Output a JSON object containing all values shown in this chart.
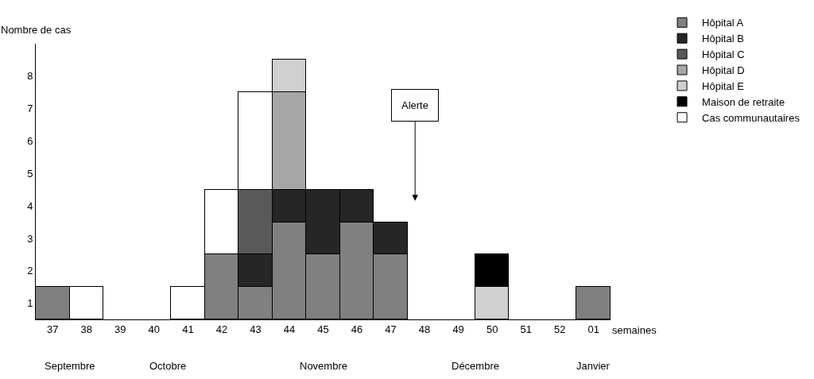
{
  "chart_data": {
    "type": "bar",
    "stacked": true,
    "xlabel": "semaines",
    "ylabel": "Nombre de cas",
    "categories": [
      "37",
      "38",
      "39",
      "40",
      "41",
      "42",
      "43",
      "44",
      "45",
      "46",
      "47",
      "48",
      "49",
      "50",
      "51",
      "52",
      "01"
    ],
    "series": [
      {
        "name": "Hôpital A",
        "color": "#808080",
        "values": [
          1,
          null,
          null,
          null,
          null,
          2,
          1,
          3,
          2,
          3,
          2,
          null,
          null,
          null,
          null,
          null,
          1
        ]
      },
      {
        "name": "Hôpital B",
        "color": "#262626",
        "values": [
          null,
          null,
          null,
          null,
          null,
          null,
          1,
          1,
          2,
          1,
          1,
          null,
          null,
          null,
          null,
          null,
          null
        ]
      },
      {
        "name": "Hôpital C",
        "color": "#595959",
        "values": [
          null,
          null,
          null,
          null,
          null,
          null,
          2,
          null,
          null,
          null,
          null,
          null,
          null,
          null,
          null,
          null,
          null
        ]
      },
      {
        "name": "Hôpital D",
        "color": "#a6a6a6",
        "values": [
          null,
          null,
          null,
          null,
          null,
          null,
          null,
          3,
          null,
          null,
          null,
          null,
          null,
          null,
          null,
          null,
          null
        ]
      },
      {
        "name": "Hôpital E",
        "color": "#d0d0d0",
        "values": [
          null,
          null,
          null,
          null,
          null,
          null,
          null,
          1,
          null,
          null,
          null,
          null,
          null,
          1,
          null,
          null,
          null
        ]
      },
      {
        "name": "Maison de retraite",
        "color": "#000000",
        "values": [
          null,
          null,
          null,
          null,
          null,
          null,
          null,
          null,
          null,
          null,
          null,
          null,
          null,
          1,
          null,
          null,
          null
        ]
      },
      {
        "name": "Cas communautaires",
        "color": "#ffffff",
        "values": [
          null,
          1,
          null,
          null,
          1,
          2,
          3,
          null,
          null,
          null,
          null,
          null,
          null,
          null,
          null,
          null,
          null
        ]
      }
    ],
    "ylim": [
      0,
      8.5
    ],
    "yticks": [
      {
        "value": 0.5,
        "label": "1"
      },
      {
        "value": 1.5,
        "label": "2"
      },
      {
        "value": 2.5,
        "label": "3"
      },
      {
        "value": 3.5,
        "label": "4"
      },
      {
        "value": 4.5,
        "label": "5"
      },
      {
        "value": 5.5,
        "label": "6"
      },
      {
        "value": 6.5,
        "label": "7"
      },
      {
        "value": 7.5,
        "label": "8"
      }
    ],
    "annotations": [
      "Alerte",
      "Septembre",
      "Octobre",
      "Novembre",
      "Décembre",
      "Janvier"
    ],
    "legend": "top right"
  }
}
